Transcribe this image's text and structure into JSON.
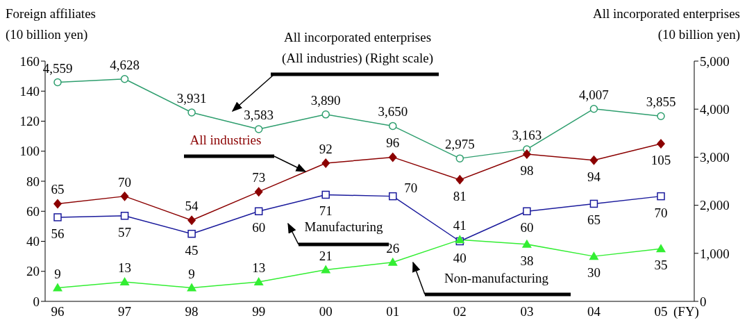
{
  "chart_data": {
    "type": "line",
    "ylabel": "Foreign affiliates\n(10 billion yen)",
    "y2label": "All incorporated enterprises\n(10 billion yen)",
    "xlabel": "(FY)",
    "categories": [
      "96",
      "97",
      "98",
      "99",
      "00",
      "01",
      "02",
      "03",
      "04",
      "05"
    ],
    "ylim": [
      0,
      160
    ],
    "yticks": [
      0,
      20,
      40,
      60,
      80,
      100,
      120,
      140,
      160
    ],
    "y2lim": [
      0,
      5000
    ],
    "y2ticks": [
      0,
      {
        "value": 1000,
        "label": "1,000"
      },
      {
        "value": 2000,
        "label": "2,000"
      },
      {
        "value": 3000,
        "label": "3,000"
      },
      {
        "value": 4000,
        "label": "4,000"
      },
      {
        "value": 5000,
        "label": "5,000"
      }
    ],
    "grid": false,
    "legend": false,
    "data_labels": true,
    "series": [
      {
        "name": "All incorporated enterprises\n(All industries) (Right scale)",
        "color": "#2e9e6e",
        "axis": "y2",
        "marker": "circle",
        "values": [
          4559,
          4628,
          3931,
          3583,
          3890,
          3650,
          2975,
          3163,
          4007,
          3855
        ],
        "value_labels": [
          "4,559",
          "4,628",
          "3,931",
          "3,583",
          "3,890",
          "3,650",
          "2,975",
          "3,163",
          "4,007",
          "3,855"
        ]
      },
      {
        "name": "All industries",
        "color": "#8b0000",
        "marker": "diamond",
        "values": [
          65,
          70,
          54,
          73,
          92,
          96,
          81,
          98,
          94,
          105
        ]
      },
      {
        "name": "Manufacturing",
        "color": "#1a1a9c",
        "marker": "square",
        "values": [
          56,
          57,
          45,
          60,
          71,
          70,
          40,
          60,
          65,
          70
        ]
      },
      {
        "name": "Non-manufacturing",
        "color": "#33ee33",
        "marker": "triangle",
        "values": [
          9,
          13,
          9,
          13,
          21,
          26,
          41,
          38,
          30,
          35
        ]
      }
    ]
  }
}
